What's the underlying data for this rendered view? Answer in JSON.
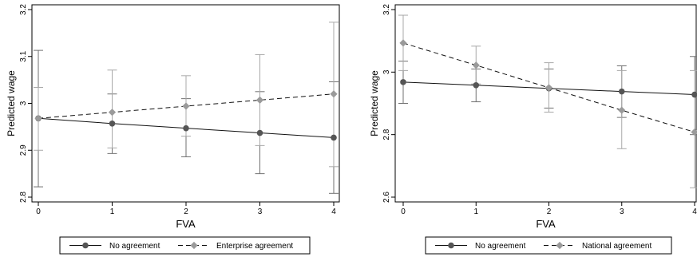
{
  "chart_data": [
    {
      "type": "line",
      "xlabel": "FVA",
      "ylabel": "Predicted wage",
      "x": [
        0,
        1,
        2,
        3,
        4
      ],
      "xlim": [
        0,
        4
      ],
      "ylim": [
        2.8,
        3.2
      ],
      "yticks": [
        "2.8",
        "2.9",
        "3",
        "3.1",
        "3.2"
      ],
      "xticks": [
        "0",
        "1",
        "2",
        "3",
        "4"
      ],
      "grid": false,
      "legend_position": "bottom",
      "series": [
        {
          "name": "No agreement",
          "style": "solid",
          "marker": "circle",
          "color": "#555555",
          "values": [
            2.968,
            2.957,
            2.947,
            2.937,
            2.927
          ],
          "ci_low": [
            2.822,
            2.893,
            2.886,
            2.85,
            2.808
          ],
          "ci_high": [
            3.113,
            3.02,
            3.01,
            3.025,
            3.046
          ]
        },
        {
          "name": "Enterprise agreement",
          "style": "dashed",
          "marker": "diamond",
          "color": "#9a9a9a",
          "values": [
            2.968,
            2.981,
            2.994,
            3.007,
            3.02
          ],
          "ci_low": [
            2.9,
            2.905,
            2.93,
            2.91,
            2.865
          ],
          "ci_high": [
            3.034,
            3.071,
            3.059,
            3.104,
            3.173
          ]
        }
      ]
    },
    {
      "type": "line",
      "xlabel": "FVA",
      "ylabel": "Predicted wage",
      "x": [
        0,
        1,
        2,
        3,
        4
      ],
      "xlim": [
        0,
        4
      ],
      "ylim": [
        2.6,
        3.2
      ],
      "yticks": [
        "2.6",
        "2.8",
        "3",
        "3.2"
      ],
      "xticks": [
        "0",
        "1",
        "2",
        "3",
        "4"
      ],
      "grid": false,
      "legend_position": "bottom",
      "series": [
        {
          "name": "No agreement",
          "style": "solid",
          "marker": "circle",
          "color": "#555555",
          "values": [
            2.968,
            2.958,
            2.948,
            2.938,
            2.928
          ],
          "ci_low": [
            2.9,
            2.905,
            2.885,
            2.855,
            2.8
          ],
          "ci_high": [
            3.035,
            3.01,
            3.01,
            3.02,
            3.05
          ]
        },
        {
          "name": "National agreement",
          "style": "dashed",
          "marker": "diamond",
          "color": "#9a9a9a",
          "values": [
            3.093,
            3.022,
            2.95,
            2.878,
            2.808
          ],
          "ci_low": [
            3.005,
            2.962,
            2.872,
            2.755,
            2.63
          ],
          "ci_high": [
            3.182,
            3.083,
            3.03,
            3.005,
            3.005
          ]
        }
      ]
    }
  ]
}
